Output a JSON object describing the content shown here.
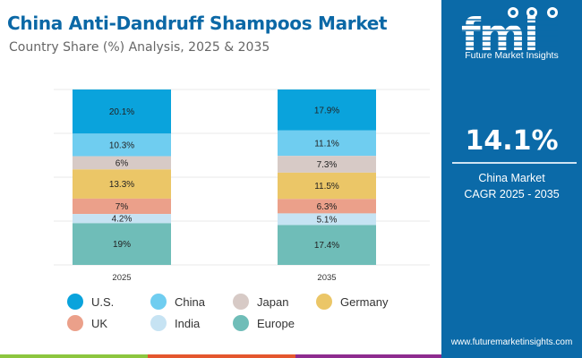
{
  "header": {
    "title": "China Anti-Dandruff Shampoos Market",
    "subtitle": "Country Share (%) Analysis, 2025 & 2035"
  },
  "sidebar": {
    "brand": "Future Market Insights",
    "logo_text": "fmi",
    "cagr_value": "14.1%",
    "cagr_label_line1": "China Market",
    "cagr_label_line2": "CAGR 2025 - 2035",
    "url": "www.futuremarketinsights.com",
    "background_color": "#0b6aa8"
  },
  "bottom_stripe_colors": [
    "#8cc63f",
    "#e4572e",
    "#8e2c8f",
    "#0b6aa8"
  ],
  "chart_data": {
    "type": "bar",
    "stacked": true,
    "title": "China Anti-Dandruff Shampoos Market",
    "subtitle": "Country Share (%) Analysis, 2025 & 2035",
    "categories": [
      "2025",
      "2035"
    ],
    "xlabel": "",
    "ylabel": "",
    "grid": true,
    "legend_position": "bottom",
    "series": [
      {
        "name": "U.S.",
        "color": "#0aa3dc",
        "values": [
          20.1,
          17.9
        ],
        "labels": [
          "20.1%",
          "17.9%"
        ]
      },
      {
        "name": "China",
        "color": "#6fcdf0",
        "values": [
          10.3,
          11.1
        ],
        "labels": [
          "10.3%",
          "11.1%"
        ]
      },
      {
        "name": "Japan",
        "color": "#d7cac6",
        "values": [
          6,
          7.3
        ],
        "labels": [
          "6%",
          "7.3%"
        ]
      },
      {
        "name": "Germany",
        "color": "#ebc667",
        "values": [
          13.3,
          11.5
        ],
        "labels": [
          "13.3%",
          "11.5%"
        ]
      },
      {
        "name": "UK",
        "color": "#eba08a",
        "values": [
          7,
          6.3
        ],
        "labels": [
          "7%",
          "6.3%"
        ]
      },
      {
        "name": "India",
        "color": "#c6e3f3",
        "values": [
          4.2,
          5.1
        ],
        "labels": [
          "4.2%",
          "5.1%"
        ]
      },
      {
        "name": "Europe",
        "color": "#6fbdb8",
        "values": [
          19,
          17.4
        ],
        "labels": [
          "19%",
          "17.4%"
        ]
      }
    ]
  }
}
